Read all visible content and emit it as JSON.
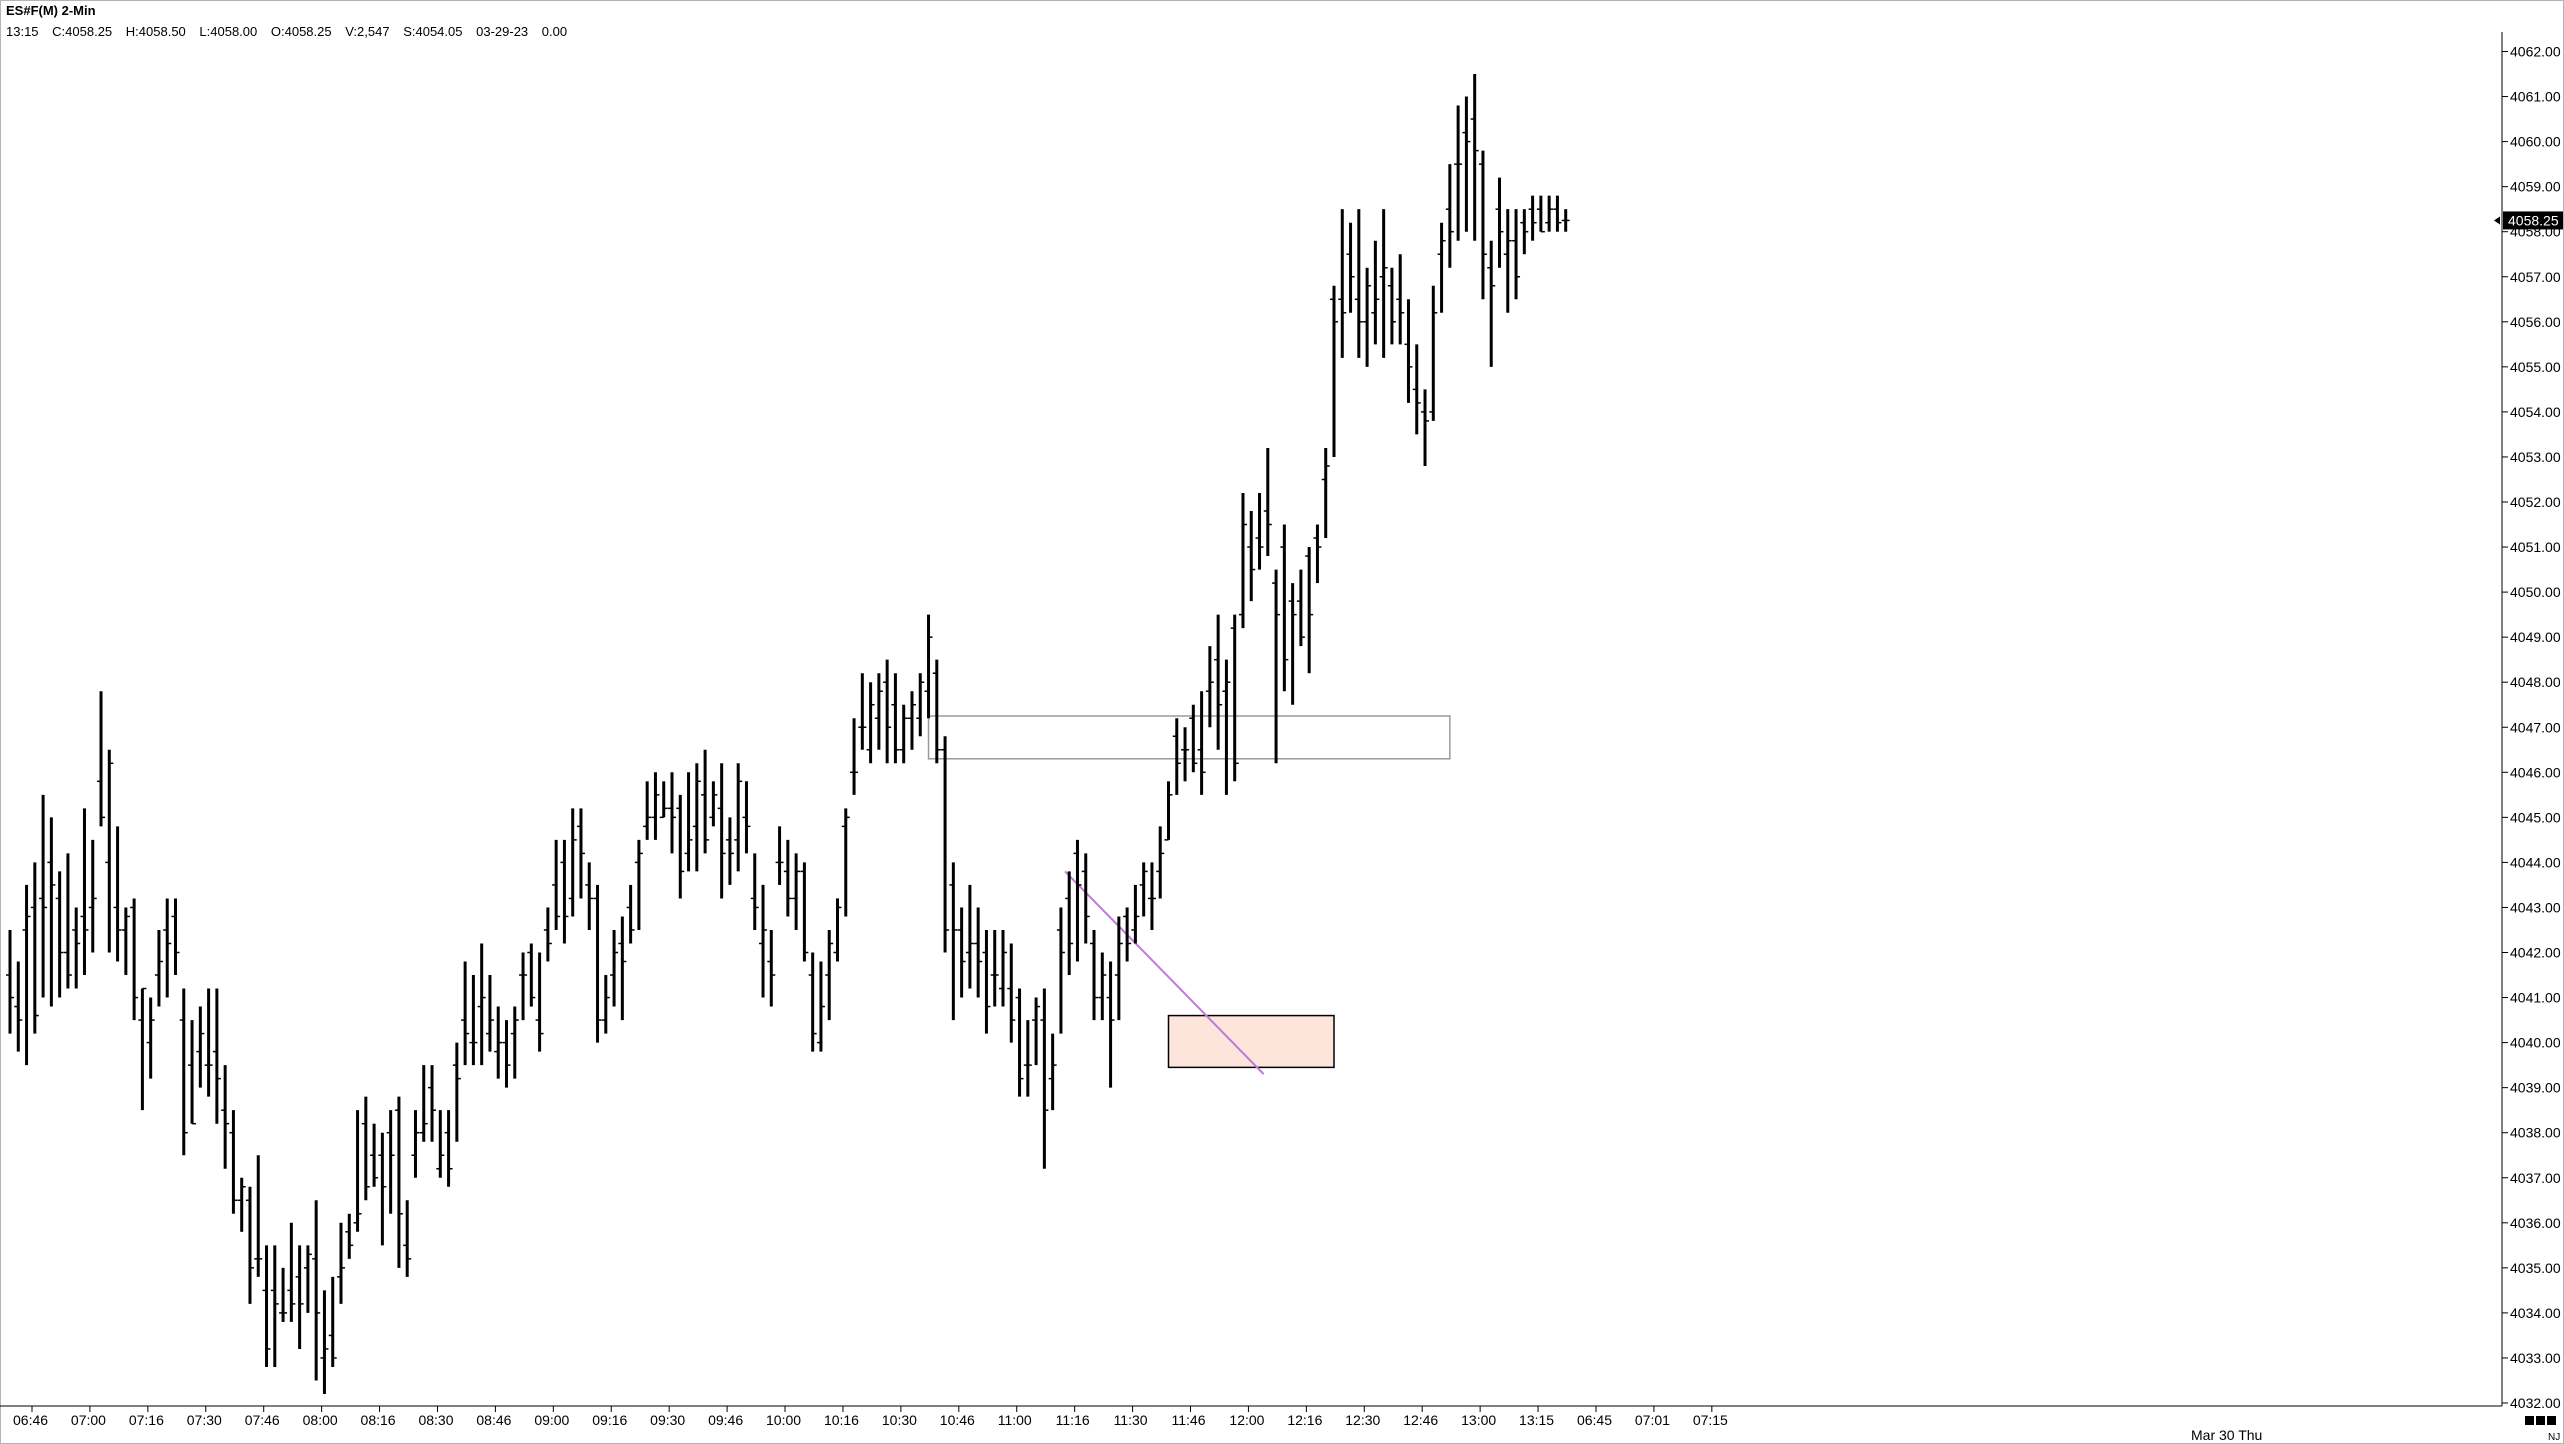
{
  "header": {
    "symbol_interval": "ES#F(M) 2-Min"
  },
  "ohlc_line": {
    "time": "13:15",
    "close": "C:4058.25",
    "high": "H:4058.50",
    "low": "L:4058.00",
    "open": "O:4058.25",
    "volume": "V:2,547",
    "settle": "S:4054.05",
    "date": "03-29-23",
    "change": "0.00"
  },
  "chart_data": {
    "type": "ohlc",
    "bar_interval": "2-Min",
    "ylim": [
      4032,
      4062.5
    ],
    "y_ticks": [
      "4032.00",
      "4033.00",
      "4034.00",
      "4035.00",
      "4036.00",
      "4037.00",
      "4038.00",
      "4039.00",
      "4040.00",
      "4041.00",
      "4042.00",
      "4043.00",
      "4044.00",
      "4045.00",
      "4046.00",
      "4047.00",
      "4048.00",
      "4049.00",
      "4050.00",
      "4051.00",
      "4052.00",
      "4053.00",
      "4054.00",
      "4055.00",
      "4056.00",
      "4057.00",
      "4058.00",
      "4059.00",
      "4060.00",
      "4061.00",
      "4062.00"
    ],
    "x_ticks": [
      "06:46",
      "07:00",
      "07:16",
      "07:30",
      "07:46",
      "08:00",
      "08:16",
      "08:30",
      "08:46",
      "09:00",
      "09:16",
      "09:30",
      "09:46",
      "10:00",
      "10:16",
      "10:30",
      "10:46",
      "11:00",
      "11:16",
      "11:30",
      "11:46",
      "12:00",
      "12:16",
      "12:30",
      "12:46",
      "13:00",
      "13:15",
      "06:45",
      "07:01",
      "07:15"
    ],
    "x_date_label": "Mar 30 Thu",
    "corner_label": "NJ",
    "last_price": "4058.25",
    "colors": {
      "bars": "#000000",
      "trendline": "#c07ad8",
      "zone_fill": "#fde5dc",
      "zone_border": "#000000",
      "resistance_border": "#9a9a9a"
    },
    "bars": [
      [
        4041.5,
        4042.5,
        4040.2,
        4041.0
      ],
      [
        4040.8,
        4041.8,
        4039.8,
        4040.5
      ],
      [
        4042.5,
        4043.5,
        4039.5,
        4042.8
      ],
      [
        4043.0,
        4044.0,
        4040.2,
        4040.6
      ],
      [
        4043.2,
        4045.5,
        4041.0,
        4043.0
      ],
      [
        4044.0,
        4045.0,
        4040.8,
        4043.5
      ],
      [
        4043.2,
        4043.8,
        4041.0,
        4042.0
      ],
      [
        4042.0,
        4044.2,
        4041.2,
        4041.5
      ],
      [
        4042.5,
        4043.0,
        4041.2,
        4042.2
      ],
      [
        4042.8,
        4045.2,
        4041.5,
        4042.5
      ],
      [
        4043.0,
        4044.5,
        4042.0,
        4043.2
      ],
      [
        4045.8,
        4047.8,
        4044.8,
        4045.0
      ],
      [
        4044.0,
        4046.5,
        4042.0,
        4046.2
      ],
      [
        4043.0,
        4044.8,
        4041.8,
        4042.5
      ],
      [
        4042.5,
        4043.0,
        4041.5,
        4042.8
      ],
      [
        4043.0,
        4043.2,
        4040.5,
        4041.0
      ],
      [
        4040.5,
        4041.2,
        4038.5,
        4041.2
      ],
      [
        4040.0,
        4041.0,
        4039.2,
        4040.5
      ],
      [
        4041.5,
        4042.5,
        4040.8,
        4041.8
      ],
      [
        4042.5,
        4043.2,
        4041.0,
        4042.2
      ],
      [
        4042.8,
        4043.2,
        4041.5,
        4042.0
      ],
      [
        4040.5,
        4041.2,
        4037.5,
        4038.0
      ],
      [
        4039.5,
        4040.5,
        4038.2,
        4038.2
      ],
      [
        4039.8,
        4040.8,
        4039.0,
        4040.2
      ],
      [
        4039.5,
        4041.2,
        4038.8,
        4039.5
      ],
      [
        4039.8,
        4041.2,
        4038.2,
        4039.2
      ],
      [
        4038.5,
        4039.5,
        4037.2,
        4038.2
      ],
      [
        4038.0,
        4038.5,
        4036.2,
        4036.5
      ],
      [
        4036.5,
        4037.0,
        4035.8,
        4036.8
      ],
      [
        4036.5,
        4036.8,
        4034.2,
        4035.0
      ],
      [
        4035.2,
        4037.5,
        4034.8,
        4035.2
      ],
      [
        4034.5,
        4035.5,
        4032.8,
        4033.2
      ],
      [
        4034.5,
        4035.5,
        4032.8,
        4034.2
      ],
      [
        4034.0,
        4035.0,
        4033.8,
        4034.0
      ],
      [
        4034.5,
        4036.0,
        4033.8,
        4034.2
      ],
      [
        4034.8,
        4035.5,
        4033.2,
        4034.2
      ],
      [
        4035.0,
        4035.5,
        4034.0,
        4035.3
      ],
      [
        4035.2,
        4036.5,
        4032.5,
        4034.0
      ],
      [
        4033.0,
        4034.5,
        4032.2,
        4033.2
      ],
      [
        4033.5,
        4034.8,
        4032.8,
        4033.0
      ],
      [
        4034.8,
        4036.0,
        4034.2,
        4035.0
      ],
      [
        4035.8,
        4036.2,
        4035.2,
        4035.5
      ],
      [
        4036.0,
        4038.5,
        4035.8,
        4036.2
      ],
      [
        4038.2,
        4038.8,
        4036.5,
        4036.8
      ],
      [
        4037.5,
        4038.2,
        4036.8,
        4037.0
      ],
      [
        4037.5,
        4038.0,
        4035.5,
        4036.8
      ],
      [
        4038.0,
        4038.5,
        4036.2,
        4037.5
      ],
      [
        4038.5,
        4038.8,
        4035.0,
        4036.2
      ],
      [
        4035.5,
        4036.5,
        4034.8,
        4035.2
      ],
      [
        4037.5,
        4038.5,
        4037.0,
        4038.0
      ],
      [
        4038.0,
        4039.5,
        4037.8,
        4038.2
      ],
      [
        4039.0,
        4039.5,
        4037.8,
        4038.5
      ],
      [
        4037.2,
        4038.5,
        4037.0,
        4037.5
      ],
      [
        4038.0,
        4038.5,
        4036.8,
        4037.2
      ],
      [
        4039.5,
        4040.0,
        4037.8,
        4039.2
      ],
      [
        4040.5,
        4041.8,
        4039.5,
        4040.2
      ],
      [
        4040.0,
        4041.5,
        4039.5,
        4040.0
      ],
      [
        4040.8,
        4042.2,
        4039.5,
        4041.0
      ],
      [
        4040.2,
        4041.5,
        4039.8,
        4040.5
      ],
      [
        4039.8,
        4040.8,
        4039.2,
        4040.0
      ],
      [
        4040.0,
        4040.5,
        4039.0,
        4039.5
      ],
      [
        4040.2,
        4040.8,
        4039.2,
        4040.5
      ],
      [
        4041.5,
        4042.0,
        4040.5,
        4041.5
      ],
      [
        4042.0,
        4042.2,
        4040.8,
        4041.0
      ],
      [
        4040.5,
        4042.0,
        4039.8,
        4040.2
      ],
      [
        4042.5,
        4043.0,
        4041.8,
        4042.2
      ],
      [
        4043.5,
        4044.5,
        4042.5,
        4042.8
      ],
      [
        4044.0,
        4044.5,
        4042.2,
        4042.8
      ],
      [
        4043.2,
        4045.2,
        4042.8,
        4044.5
      ],
      [
        4044.8,
        4045.2,
        4043.2,
        4044.2
      ],
      [
        4043.5,
        4044.0,
        4042.5,
        4043.2
      ],
      [
        4043.2,
        4043.5,
        4040.0,
        4040.5
      ],
      [
        4040.5,
        4041.5,
        4040.2,
        4041.0
      ],
      [
        4041.5,
        4042.5,
        4040.8,
        4042.0
      ],
      [
        4042.2,
        4042.8,
        4040.5,
        4041.8
      ],
      [
        4043.0,
        4043.5,
        4042.2,
        4042.5
      ],
      [
        4044.0,
        4044.5,
        4042.5,
        4044.2
      ],
      [
        4044.8,
        4045.8,
        4044.5,
        4045.0
      ],
      [
        4045.0,
        4046.0,
        4044.5,
        4045.5
      ],
      [
        4045.0,
        4045.8,
        4045.0,
        4045.2
      ],
      [
        4045.2,
        4046.0,
        4044.2,
        4045.0
      ],
      [
        4045.2,
        4045.5,
        4043.2,
        4043.8
      ],
      [
        4044.2,
        4046.0,
        4043.8,
        4044.5
      ],
      [
        4044.8,
        4046.2,
        4043.8,
        4045.8
      ],
      [
        4045.5,
        4046.5,
        4044.2,
        4044.5
      ],
      [
        4045.0,
        4045.8,
        4044.8,
        4045.5
      ],
      [
        4045.2,
        4046.2,
        4043.2,
        4044.2
      ],
      [
        4044.5,
        4045.0,
        4043.5,
        4044.2
      ],
      [
        4044.5,
        4046.2,
        4043.8,
        4045.8
      ],
      [
        4045.0,
        4045.8,
        4044.2,
        4044.8
      ],
      [
        4043.2,
        4044.2,
        4042.5,
        4043.0
      ],
      [
        4042.2,
        4043.5,
        4041.0,
        4042.5
      ],
      [
        4041.8,
        4042.5,
        4040.8,
        4041.5
      ],
      [
        4044.0,
        4044.8,
        4043.5,
        4044.0
      ],
      [
        4043.8,
        4044.5,
        4042.8,
        4043.2
      ],
      [
        4043.2,
        4044.2,
        4042.5,
        4043.8
      ],
      [
        4043.8,
        4044.0,
        4041.8,
        4042.0
      ],
      [
        4041.5,
        4042.0,
        4039.8,
        4040.2
      ],
      [
        4040.0,
        4041.8,
        4039.8,
        4040.8
      ],
      [
        4041.5,
        4042.5,
        4040.5,
        4042.2
      ],
      [
        4042.0,
        4043.2,
        4041.8,
        4043.0
      ],
      [
        4044.8,
        4045.2,
        4042.8,
        4045.0
      ],
      [
        4046.0,
        4047.2,
        4045.5,
        4046.0
      ],
      [
        4047.0,
        4048.2,
        4046.5,
        4047.0
      ],
      [
        4046.5,
        4048.0,
        4046.2,
        4047.5
      ],
      [
        4047.2,
        4048.2,
        4046.5,
        4047.8
      ],
      [
        4048.0,
        4048.5,
        4046.2,
        4047.0
      ],
      [
        4047.5,
        4048.2,
        4046.2,
        4046.5
      ],
      [
        4046.5,
        4047.5,
        4046.2,
        4047.2
      ],
      [
        4047.2,
        4047.8,
        4046.5,
        4047.5
      ],
      [
        4047.2,
        4048.2,
        4046.8,
        4048.0
      ],
      [
        4047.8,
        4049.5,
        4047.2,
        4049.0
      ],
      [
        4048.2,
        4048.5,
        4046.2,
        4046.5
      ],
      [
        4046.5,
        4046.8,
        4042.0,
        4042.5
      ],
      [
        4043.5,
        4044.0,
        4040.5,
        4042.5
      ],
      [
        4042.5,
        4043.0,
        4041.0,
        4041.8
      ],
      [
        4042.0,
        4043.5,
        4041.2,
        4042.2
      ],
      [
        4042.2,
        4043.0,
        4041.0,
        4041.8
      ],
      [
        4042.0,
        4042.5,
        4040.2,
        4040.8
      ],
      [
        4041.5,
        4042.5,
        4040.8,
        4041.5
      ],
      [
        4041.2,
        4042.5,
        4040.8,
        4042.0
      ],
      [
        4041.2,
        4042.2,
        4040.0,
        4040.5
      ],
      [
        4041.0,
        4041.2,
        4038.8,
        4039.2
      ],
      [
        4039.5,
        4040.5,
        4038.8,
        4039.5
      ],
      [
        4040.5,
        4041.0,
        4039.5,
        4040.8
      ],
      [
        4040.5,
        4041.2,
        4037.2,
        4038.5
      ],
      [
        4039.2,
        4040.2,
        4038.5,
        4039.5
      ],
      [
        4042.5,
        4043.0,
        4040.2,
        4042.0
      ],
      [
        4043.2,
        4043.8,
        4041.5,
        4042.2
      ],
      [
        4044.2,
        4044.5,
        4041.8,
        4043.5
      ],
      [
        4043.8,
        4044.2,
        4042.2,
        4042.8
      ],
      [
        4042.2,
        4042.5,
        4040.5,
        4041.0
      ],
      [
        4041.0,
        4042.0,
        4040.5,
        4041.5
      ],
      [
        4041.0,
        4041.8,
        4039.0,
        4040.5
      ],
      [
        4041.5,
        4042.8,
        4040.5,
        4042.2
      ],
      [
        4042.8,
        4043.0,
        4041.8,
        4042.2
      ],
      [
        4042.5,
        4043.5,
        4042.2,
        4042.8
      ],
      [
        4043.5,
        4044.0,
        4042.8,
        4043.8
      ],
      [
        4043.2,
        4044.0,
        4042.5,
        4043.2
      ],
      [
        4043.8,
        4044.8,
        4043.2,
        4044.2
      ],
      [
        4044.5,
        4045.8,
        4044.5,
        4045.5
      ],
      [
        4046.8,
        4047.2,
        4045.5,
        4046.2
      ],
      [
        4046.5,
        4047.0,
        4045.8,
        4046.5
      ],
      [
        4047.2,
        4047.5,
        4046.0,
        4046.2
      ],
      [
        4046.5,
        4047.8,
        4045.5,
        4046.0
      ],
      [
        4047.8,
        4048.8,
        4047.0,
        4048.0
      ],
      [
        4048.5,
        4049.5,
        4046.5,
        4047.5
      ],
      [
        4047.8,
        4048.5,
        4045.5,
        4048.0
      ],
      [
        4049.2,
        4049.5,
        4045.8,
        4046.2
      ],
      [
        4049.5,
        4052.2,
        4049.2,
        4051.5
      ],
      [
        4051.0,
        4051.8,
        4049.8,
        4050.5
      ],
      [
        4051.2,
        4052.2,
        4050.5,
        4051.0
      ],
      [
        4051.8,
        4053.2,
        4050.8,
        4051.5
      ],
      [
        4050.2,
        4050.5,
        4046.2,
        4049.5
      ],
      [
        4051.0,
        4051.5,
        4047.8,
        4048.5
      ],
      [
        4049.8,
        4050.2,
        4047.5,
        4049.5
      ],
      [
        4049.8,
        4050.5,
        4048.8,
        4049.0
      ],
      [
        4050.8,
        4051.0,
        4048.2,
        4049.5
      ],
      [
        4051.2,
        4051.5,
        4050.2,
        4051.0
      ],
      [
        4052.5,
        4053.2,
        4051.2,
        4052.8
      ],
      [
        4056.5,
        4056.8,
        4053.0,
        4056.0
      ],
      [
        4056.5,
        4058.5,
        4055.2,
        4056.2
      ],
      [
        4057.5,
        4058.2,
        4056.2,
        4057.0
      ],
      [
        4056.5,
        4058.5,
        4055.2,
        4056.0
      ],
      [
        4056.0,
        4057.2,
        4055.0,
        4056.8
      ],
      [
        4056.2,
        4057.8,
        4055.5,
        4056.5
      ],
      [
        4057.0,
        4058.5,
        4055.2,
        4057.2
      ],
      [
        4056.8,
        4057.2,
        4055.5,
        4056.0
      ],
      [
        4056.5,
        4057.5,
        4055.5,
        4056.2
      ],
      [
        4055.5,
        4056.5,
        4054.2,
        4055.0
      ],
      [
        4054.5,
        4055.5,
        4053.5,
        4054.2
      ],
      [
        4054.0,
        4054.5,
        4052.8,
        4053.8
      ],
      [
        4054.0,
        4056.8,
        4053.8,
        4056.2
      ],
      [
        4057.5,
        4058.2,
        4056.2,
        4057.8
      ],
      [
        4058.5,
        4059.5,
        4057.2,
        4058.0
      ],
      [
        4059.5,
        4060.8,
        4057.8,
        4059.5
      ],
      [
        4060.2,
        4061.0,
        4058.0,
        4060.0
      ],
      [
        4060.5,
        4061.5,
        4057.8,
        4059.8
      ],
      [
        4059.5,
        4059.8,
        4056.5,
        4057.5
      ],
      [
        4057.2,
        4057.8,
        4055.0,
        4056.8
      ],
      [
        4058.5,
        4059.2,
        4057.2,
        4058.0
      ],
      [
        4057.5,
        4058.5,
        4056.2,
        4057.8
      ],
      [
        4057.8,
        4058.5,
        4056.5,
        4057.0
      ],
      [
        4058.2,
        4058.5,
        4057.5,
        4058.0
      ],
      [
        4058.5,
        4058.8,
        4057.8,
        4058.2
      ],
      [
        4058.5,
        4058.8,
        4058.0,
        4058.0
      ],
      [
        4058.2,
        4058.8,
        4058.0,
        4058.5
      ],
      [
        4058.5,
        4058.8,
        4058.0,
        4058.2
      ],
      [
        4058.25,
        4058.5,
        4058.0,
        4058.25
      ]
    ],
    "zones": [
      {
        "kind": "resistance",
        "t_start": 111,
        "t_end": 174,
        "y_low": 4046.3,
        "y_high": 4047.25
      },
      {
        "kind": "demand",
        "t_start": 140,
        "t_end": 160,
        "y_low": 4039.45,
        "y_high": 4040.6
      }
    ],
    "trendline": {
      "t1": 127.5,
      "y1": 4043.8,
      "t2": 151.5,
      "y2": 4039.3
    }
  }
}
